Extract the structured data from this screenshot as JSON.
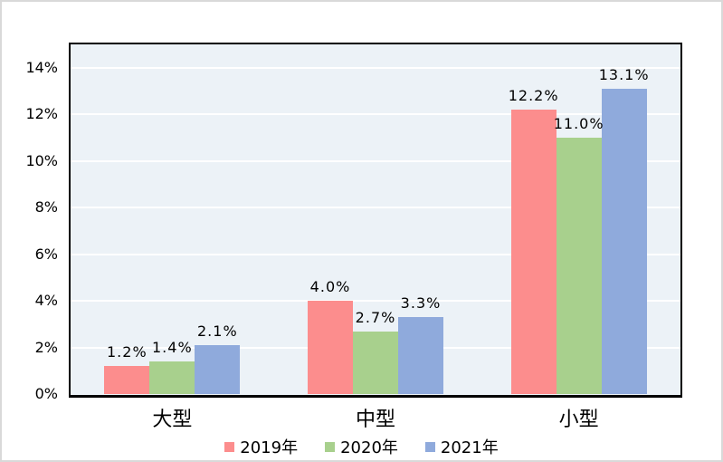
{
  "chart_data": {
    "type": "bar",
    "title": "",
    "xlabel": "",
    "ylabel": "",
    "categories": [
      "大型",
      "中型",
      "小型"
    ],
    "series": [
      {
        "name": "2019年",
        "color": "#FC8D8D",
        "values": [
          1.2,
          4.0,
          12.2
        ],
        "labels": [
          "1.2%",
          "4.0%",
          "12.2%"
        ]
      },
      {
        "name": "2020年",
        "color": "#A8D08D",
        "values": [
          1.4,
          2.7,
          11.0
        ],
        "labels": [
          "1.4%",
          "2.7%",
          "11.0%"
        ]
      },
      {
        "name": "2021年",
        "color": "#8FAADC",
        "values": [
          2.1,
          3.3,
          13.1
        ],
        "labels": [
          "2.1%",
          "3.3%",
          "13.1%"
        ]
      }
    ],
    "ylim": [
      0,
      15
    ],
    "ytick_step": 2,
    "ytick_labels": [
      "0%",
      "2%",
      "4%",
      "6%",
      "8%",
      "10%",
      "12%",
      "14%"
    ],
    "grid": true,
    "legend_position": "bottom",
    "colors": {
      "plot_background": "#ECF2F7",
      "gridline": "#FFFFFF",
      "plot_border": "#000000",
      "outer_border": "#D9D9D9",
      "text": "#000000",
      "page_background": "#FFFFFF"
    }
  }
}
